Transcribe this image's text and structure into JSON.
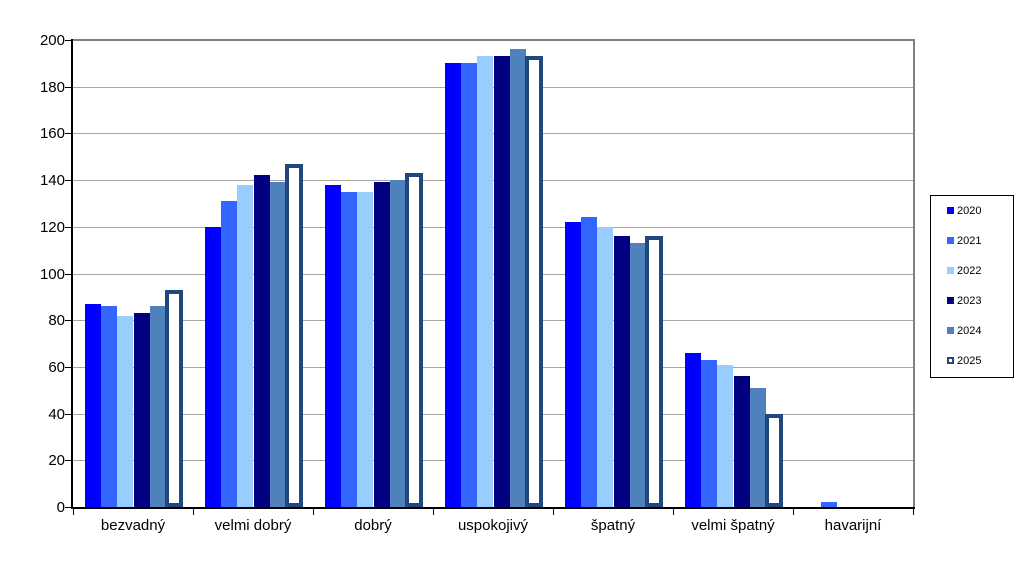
{
  "chart_data": {
    "type": "bar",
    "title": "",
    "xlabel": "",
    "ylabel": "",
    "categories": [
      "bezvadný",
      "velmi dobrý",
      "dobrý",
      "uspokojivý",
      "špatný",
      "velmi špatný",
      "havarijní"
    ],
    "series": [
      {
        "name": "2020",
        "color": "#0000FF",
        "values": [
          87,
          120,
          138,
          190,
          122,
          66,
          0
        ]
      },
      {
        "name": "2021",
        "color": "#3366FF",
        "values": [
          86,
          131,
          135,
          190,
          124,
          63,
          2
        ]
      },
      {
        "name": "2022",
        "color": "#99CCFF",
        "values": [
          82,
          138,
          135,
          193,
          120,
          61,
          0
        ]
      },
      {
        "name": "2023",
        "color": "#000080",
        "values": [
          83,
          142,
          139,
          193,
          116,
          56,
          0
        ]
      },
      {
        "name": "2024",
        "color": "#4F81BD",
        "values": [
          86,
          139,
          140,
          196,
          113,
          51,
          0
        ]
      },
      {
        "name": "2025",
        "color": "#FFFFFF",
        "border_color": "#1F497D",
        "values": [
          93,
          147,
          143,
          193,
          116,
          40,
          0
        ]
      }
    ],
    "ylim": [
      0,
      200
    ],
    "ytick_step": 20,
    "ytick_labels": [
      "0",
      "20",
      "40",
      "60",
      "80",
      "100",
      "120",
      "140",
      "160",
      "180",
      "200"
    ],
    "grid": true,
    "grid_color": "#A6A6A6",
    "plot_border_color": "#808080",
    "axis_color": "#000000",
    "legend_position": "right",
    "legend_labels": [
      "2020",
      "2021",
      "2022",
      "2023",
      "2024",
      "2025"
    ]
  }
}
